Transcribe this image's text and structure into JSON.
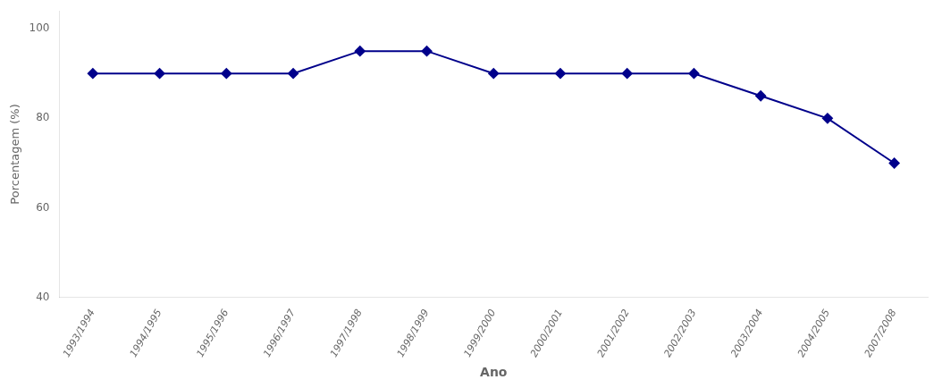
{
  "chart_data": {
    "type": "line",
    "xlabel": "Ano",
    "ylabel": "Porcentagem (%)",
    "categories": [
      "1993/1994",
      "1994/1995",
      "1995/1996",
      "1996/1997",
      "1997/1998",
      "1998/1999",
      "1999/2000",
      "2000/2001",
      "2001/2002",
      "2002/2003",
      "2003/2004",
      "2004/2005",
      "2007/2008"
    ],
    "values": [
      90,
      90,
      90,
      90,
      95,
      95,
      90,
      90,
      90,
      90,
      85,
      80,
      70
    ],
    "color": "#00008B",
    "marker": "diamond",
    "ylim": [
      40,
      104
    ],
    "yticks": [
      40,
      60,
      80,
      100
    ],
    "grid": false
  }
}
